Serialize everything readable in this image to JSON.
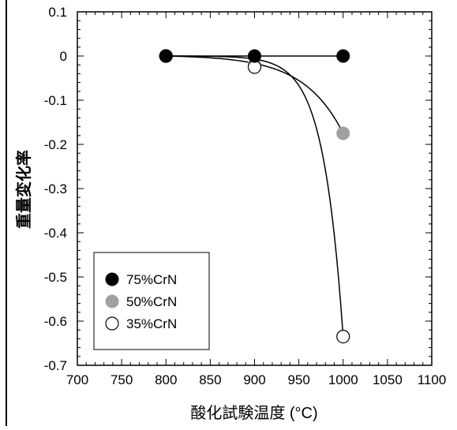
{
  "chart_data": {
    "type": "scatter",
    "title": "",
    "xlabel": "酸化試験温度 (°C)",
    "ylabel": "重量変化率",
    "xlim": [
      700,
      1100
    ],
    "ylim": [
      -0.7,
      0.1
    ],
    "x_ticks": [
      700,
      750,
      800,
      850,
      900,
      950,
      1000,
      1050,
      1100
    ],
    "y_ticks": [
      0.1,
      0,
      -0.1,
      -0.2,
      -0.3,
      -0.4,
      -0.5,
      -0.6,
      -0.7
    ],
    "x_tick_labels": [
      "700",
      "750",
      "800",
      "850",
      "900",
      "950",
      "1000",
      "1050",
      "1100"
    ],
    "y_tick_labels": [
      "0.1",
      "0",
      "-0.1",
      "-0.2",
      "-0.3",
      "-0.4",
      "-0.5",
      "-0.6",
      "-0.7"
    ],
    "legend_position": "bottom-left",
    "grid": false,
    "series": [
      {
        "name": "75%CrN",
        "x": [
          800,
          900,
          1000
        ],
        "y": [
          0,
          0,
          0
        ],
        "color": "#000000",
        "marker": "filled-circle",
        "fit": "line"
      },
      {
        "name": "50%CrN",
        "x": [
          800,
          900,
          1000
        ],
        "y": [
          0,
          -0.02,
          -0.175
        ],
        "color": "#a0a0a0",
        "marker": "filled-circle",
        "fit": "curve"
      },
      {
        "name": "35%CrN",
        "x": [
          800,
          900,
          1000
        ],
        "y": [
          0,
          -0.025,
          -0.635
        ],
        "color": "#ffffff",
        "marker": "open-circle",
        "fit": "curve"
      }
    ]
  }
}
